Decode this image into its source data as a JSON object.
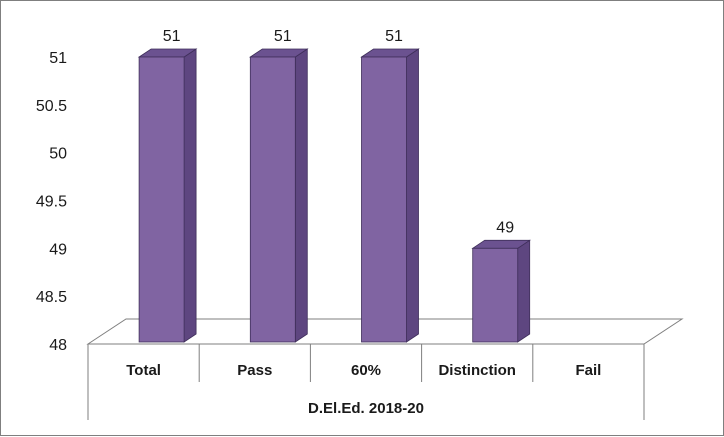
{
  "chart_data": {
    "type": "bar",
    "style": "3d-column",
    "categories": [
      "Total",
      "Pass",
      "60%",
      "Distinction",
      "Fail"
    ],
    "values": [
      51,
      51,
      51,
      49,
      null
    ],
    "data_labels": [
      "51",
      "51",
      "51",
      "49",
      ""
    ],
    "group_label": "D.El.Ed. 2018-20",
    "title": "",
    "xlabel": "",
    "ylabel": "",
    "ylim": [
      48,
      51
    ],
    "yticks": [
      "48",
      "48.5",
      "49",
      "49.5",
      "50",
      "50.5",
      "51"
    ],
    "grid": false,
    "legend": "none",
    "colors": {
      "bar_front": "#8064a2",
      "bar_side": "#5e4680",
      "bar_top": "#6b5290",
      "bar_edge": "#3f2f5a",
      "axis": "#7f7f7f"
    }
  }
}
